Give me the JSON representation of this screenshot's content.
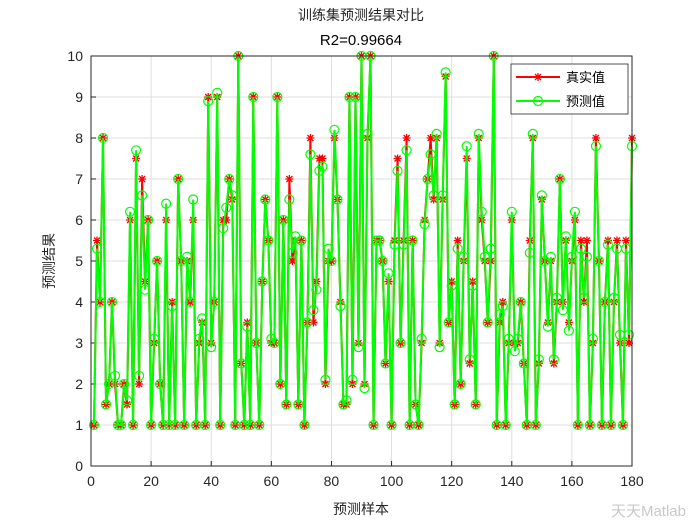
{
  "chart_data": {
    "type": "line",
    "title": "训练集预测结果对比",
    "subtitle": "R2=0.99664",
    "xlabel": "预测样本",
    "ylabel": "预测结果",
    "xlim": [
      0,
      180
    ],
    "ylim": [
      0,
      10
    ],
    "xticks": [
      0,
      20,
      40,
      60,
      80,
      100,
      120,
      140,
      160,
      180
    ],
    "yticks": [
      0,
      1,
      2,
      3,
      4,
      5,
      6,
      7,
      8,
      9,
      10
    ],
    "grid": true,
    "legend_position": "top-right",
    "series": [
      {
        "name": "真实值",
        "color": "#ff0000",
        "marker": "asterisk",
        "values": [
          1,
          5.5,
          4,
          8,
          1.5,
          2,
          4,
          2,
          1,
          1,
          2,
          1.5,
          6,
          1,
          7.5,
          2,
          7,
          4.5,
          6,
          1,
          3,
          5,
          2,
          1,
          6,
          1,
          4,
          1,
          7,
          5,
          1,
          5,
          4,
          6,
          1,
          3,
          3.5,
          1,
          9,
          3,
          4,
          9,
          1,
          6,
          6,
          7,
          6.5,
          1,
          10,
          2.5,
          1,
          3.5,
          1,
          9,
          3,
          1,
          4.5,
          6.5,
          5.5,
          3,
          3,
          9,
          2,
          6,
          1.5,
          7,
          5,
          5.5,
          1.5,
          5.5,
          1,
          3.5,
          8,
          3.5,
          4.5,
          7.5,
          7.5,
          2,
          5,
          5,
          8,
          6.5,
          4,
          1.5,
          1.5,
          9,
          2,
          9,
          3,
          10,
          2,
          8,
          10,
          1,
          5.5,
          5.5,
          5,
          2.5,
          4.5,
          1,
          5.5,
          7.5,
          3,
          5.5,
          8,
          1,
          5.5,
          1.5,
          1,
          3,
          6,
          7,
          8,
          6.5,
          8,
          3,
          6.5,
          9.5,
          3.5,
          4.5,
          1.5,
          5.5,
          2,
          5,
          7.5,
          2.5,
          4.5,
          1.5,
          8,
          6,
          5,
          3.5,
          5,
          10,
          1,
          3.5,
          4,
          1,
          3,
          6,
          3,
          3,
          4,
          2.5,
          1,
          5.5,
          8,
          1,
          2.5,
          6.5,
          5,
          3.5,
          5,
          2.5,
          4,
          7,
          4,
          5.5,
          3.5,
          5,
          6,
          1,
          5.5,
          4,
          5.5,
          1,
          3,
          8,
          5,
          1,
          4,
          5.5,
          1,
          4,
          5.5,
          3,
          1,
          5.5,
          3,
          8
        ]
      },
      {
        "name": "预测值",
        "color": "#00ff00",
        "marker": "circle",
        "values": [
          1,
          5.3,
          4,
          8,
          1.5,
          2,
          4,
          2.2,
          1,
          1,
          2,
          1.6,
          6.2,
          1,
          7.7,
          2.2,
          6.6,
          4.3,
          6,
          1,
          3.1,
          5,
          2,
          1,
          6.4,
          1,
          3.9,
          1,
          7,
          5,
          1,
          5.1,
          4,
          6.5,
          1,
          3.1,
          3.6,
          1,
          8.9,
          2.9,
          4,
          9.1,
          1,
          5.8,
          6.3,
          7,
          6.6,
          1,
          10,
          2.5,
          1,
          3.4,
          1,
          9,
          3,
          1,
          4.5,
          6.5,
          5.5,
          3.1,
          3,
          9,
          2,
          6,
          1.5,
          6.5,
          5.2,
          5.6,
          1.5,
          5.5,
          1,
          3.5,
          7.6,
          3.8,
          4.3,
          7.2,
          7.3,
          2.1,
          5.3,
          5,
          8.2,
          6.5,
          3.9,
          1.5,
          1.6,
          9,
          2.1,
          9,
          2.9,
          10,
          1.9,
          8.1,
          10,
          1,
          5.5,
          5.5,
          5,
          2.5,
          4.7,
          1,
          5.4,
          7.2,
          3,
          5.4,
          7.7,
          1,
          5.5,
          1.5,
          1,
          3.1,
          5.9,
          7,
          7.6,
          6.6,
          8.1,
          2.9,
          6.6,
          9.6,
          3.5,
          4.4,
          1.5,
          5.3,
          2,
          5.1,
          7.8,
          2.6,
          4.4,
          1.5,
          8.1,
          6.2,
          5.1,
          3.5,
          5.3,
          10,
          1,
          3.7,
          3.9,
          1,
          3.1,
          6.2,
          2.8,
          3.1,
          4,
          2.5,
          1,
          5.2,
          8.1,
          1,
          2.6,
          6.6,
          5,
          3.4,
          5.1,
          2.6,
          4.1,
          7,
          3.8,
          5.6,
          3.3,
          5.1,
          6.2,
          1,
          5.3,
          4.1,
          5.1,
          1,
          3.1,
          7.8,
          5,
          1,
          4,
          5.4,
          1,
          4.1,
          5.3,
          3.2,
          1,
          5.3,
          3.2,
          7.8
        ]
      }
    ]
  },
  "watermark": "天天Matlab"
}
